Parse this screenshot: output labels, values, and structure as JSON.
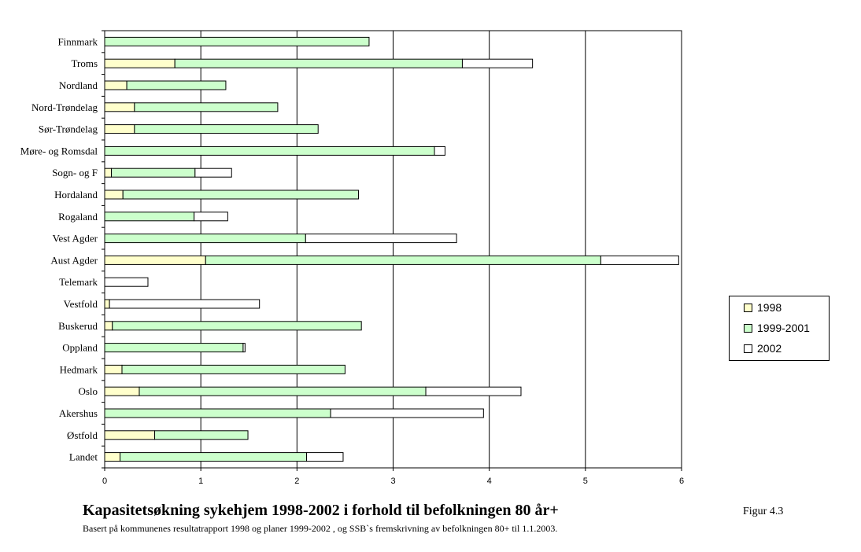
{
  "chart_data": {
    "type": "bar",
    "orientation": "horizontal",
    "stacked": true,
    "categories": [
      "Finnmark",
      "Troms",
      "Nordland",
      "Nord-Trøndelag",
      "Sør-Trøndelag",
      "Møre- og Romsdal",
      "Sogn- og F",
      "Hordaland",
      "Rogaland",
      "Vest Agder",
      "Aust Agder",
      "Telemark",
      "Vestfold",
      "Buskerud",
      "Oppland",
      "Hedmark",
      "Oslo",
      "Akershus",
      "Østfold",
      "Landet"
    ],
    "series": [
      {
        "name": "1998",
        "color": "#ffffcc",
        "values": [
          0,
          0.73,
          0.23,
          0.31,
          0.31,
          0,
          0.07,
          0.19,
          0,
          0,
          1.05,
          0,
          0.05,
          0.08,
          0,
          0.18,
          0.36,
          0,
          0.52,
          0.16
        ]
      },
      {
        "name": "1999-2001",
        "color": "#ccffcc",
        "values": [
          2.75,
          2.99,
          1.03,
          1.49,
          1.91,
          3.43,
          0.87,
          2.45,
          0.93,
          2.09,
          4.11,
          0,
          0,
          2.59,
          1.44,
          2.32,
          2.98,
          2.35,
          0.97,
          1.94
        ]
      },
      {
        "name": "2002",
        "color": "#ffffff",
        "values": [
          0,
          0.73,
          0,
          0,
          0,
          0.11,
          0.38,
          0,
          0.35,
          1.57,
          0.81,
          0.45,
          1.56,
          0,
          0.02,
          0,
          0.99,
          1.59,
          0,
          0.38
        ]
      }
    ],
    "xlim": [
      0,
      6
    ],
    "xticks": [
      "0",
      "1",
      "2",
      "3",
      "4",
      "5",
      "6"
    ],
    "grid": "vertical",
    "legend_position": "right",
    "title": "Kapasitetsøkning sykehjem 1998-2002 i forhold til befolkningen 80 år+",
    "subtitle": "Basert på kommunenes resultatrapport 1998 og planer 1999-2002 , og SSB`s fremskrivning av befolkningen 80+ til  1.1.2003.",
    "figure_label": "Figur 4.3"
  }
}
